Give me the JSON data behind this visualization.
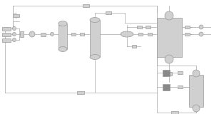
{
  "fig_bg": "#ffffff",
  "line_color": "#aaaaaa",
  "box_color": "#d0d0d0",
  "box_edge": "#999999",
  "dark_box": "#888888",
  "med_box": "#bbbbbb",
  "lw": 0.5
}
